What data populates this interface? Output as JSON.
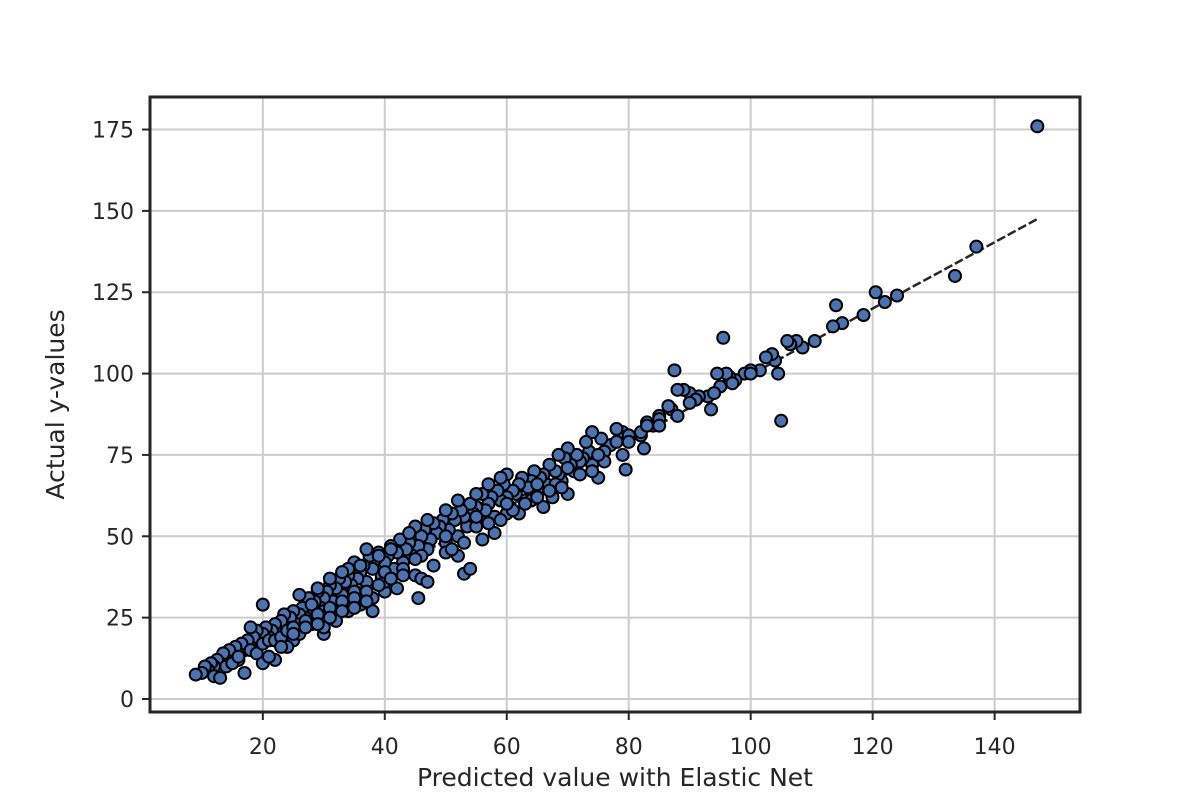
{
  "chart_data": {
    "type": "scatter",
    "title": "",
    "xlabel": "Predicted value with Elastic Net",
    "ylabel": "Actual y-values",
    "xlim": [
      1.5,
      154
    ],
    "ylim": [
      -4,
      185
    ],
    "xticks": [
      20,
      40,
      60,
      80,
      100,
      120,
      140
    ],
    "yticks": [
      0,
      25,
      50,
      75,
      100,
      125,
      150,
      175
    ],
    "grid": true,
    "legend": "none",
    "colors": {
      "point_fill": "#4c72b0",
      "point_edge": "#000000",
      "grid": "#cccccc",
      "axes": "#262626",
      "reference_line": "#262626"
    },
    "reference_line": {
      "style": "dashed",
      "x": [
        9,
        147
      ],
      "y": [
        7,
        147.5
      ]
    },
    "points": [
      [
        147,
        176
      ],
      [
        137,
        139
      ],
      [
        133.5,
        130
      ],
      [
        124,
        124
      ],
      [
        122,
        122
      ],
      [
        120.5,
        125
      ],
      [
        118.5,
        118
      ],
      [
        115,
        115.5
      ],
      [
        114,
        121
      ],
      [
        113.5,
        114.5
      ],
      [
        110.5,
        110
      ],
      [
        108.5,
        108
      ],
      [
        107.5,
        110
      ],
      [
        106.5,
        109
      ],
      [
        106,
        110
      ],
      [
        105,
        85.5
      ],
      [
        104.5,
        100
      ],
      [
        104,
        104
      ],
      [
        103.5,
        106
      ],
      [
        102.5,
        105
      ],
      [
        101.5,
        101
      ],
      [
        100,
        101
      ],
      [
        99,
        100
      ],
      [
        97.5,
        98
      ],
      [
        96.5,
        99
      ],
      [
        96,
        100
      ],
      [
        95.5,
        111
      ],
      [
        95,
        96
      ],
      [
        94.5,
        100
      ],
      [
        93.5,
        89
      ],
      [
        93,
        93
      ],
      [
        91.5,
        93
      ],
      [
        90,
        94
      ],
      [
        89,
        95
      ],
      [
        88,
        95
      ],
      [
        87.5,
        101
      ],
      [
        87,
        89
      ],
      [
        86.5,
        90
      ],
      [
        85,
        87
      ],
      [
        84,
        84
      ],
      [
        83,
        85
      ],
      [
        82.5,
        77
      ],
      [
        82,
        81
      ],
      [
        80,
        80
      ],
      [
        79,
        82
      ],
      [
        79,
        75
      ],
      [
        79.5,
        70.5
      ],
      [
        78,
        83
      ],
      [
        77,
        78
      ],
      [
        76,
        76
      ],
      [
        75.5,
        80
      ],
      [
        75,
        68
      ],
      [
        74,
        72
      ],
      [
        74,
        82
      ],
      [
        73.5,
        76
      ],
      [
        73,
        79
      ],
      [
        72.5,
        74
      ],
      [
        72,
        73
      ],
      [
        71.5,
        75
      ],
      [
        71,
        70
      ],
      [
        70.5,
        72
      ],
      [
        70,
        77
      ],
      [
        69.5,
        74
      ],
      [
        69,
        67
      ],
      [
        68.5,
        69
      ],
      [
        68.5,
        75
      ],
      [
        68,
        70
      ],
      [
        67.5,
        62
      ],
      [
        67,
        72
      ],
      [
        66.5,
        66
      ],
      [
        66,
        69
      ],
      [
        65.5,
        68
      ],
      [
        65,
        64
      ],
      [
        64.5,
        70
      ],
      [
        64,
        67
      ],
      [
        63.5,
        65
      ],
      [
        63,
        61
      ],
      [
        62.5,
        68
      ],
      [
        62,
        66
      ],
      [
        61.5,
        63
      ],
      [
        61,
        64
      ],
      [
        60.5,
        59
      ],
      [
        60,
        69
      ],
      [
        60,
        62
      ],
      [
        59.5,
        66
      ],
      [
        59,
        61
      ],
      [
        58.5,
        64
      ],
      [
        58,
        56
      ],
      [
        57.5,
        62
      ],
      [
        57,
        60
      ],
      [
        56.5,
        58
      ],
      [
        56,
        63
      ],
      [
        55.5,
        55
      ],
      [
        55,
        59
      ],
      [
        54.5,
        57
      ],
      [
        54,
        60
      ],
      [
        53.5,
        53
      ],
      [
        53,
        56
      ],
      [
        52.5,
        58
      ],
      [
        52,
        50
      ],
      [
        51.5,
        55
      ],
      [
        51,
        57
      ],
      [
        50.5,
        52
      ],
      [
        50,
        48
      ],
      [
        49.5,
        55
      ],
      [
        49,
        53
      ],
      [
        48.5,
        51
      ],
      [
        48,
        54
      ],
      [
        47.5,
        49
      ],
      [
        47,
        46
      ],
      [
        46.5,
        52
      ],
      [
        46,
        50
      ],
      [
        45.5,
        47
      ],
      [
        45,
        53
      ],
      [
        44.5,
        44
      ],
      [
        44,
        48
      ],
      [
        43.5,
        46
      ],
      [
        43,
        42
      ],
      [
        42.5,
        49
      ],
      [
        42,
        45
      ],
      [
        41.5,
        40
      ],
      [
        41,
        47
      ],
      [
        40.5,
        44
      ],
      [
        40,
        42
      ],
      [
        39.5,
        38
      ],
      [
        39,
        45
      ],
      [
        38.5,
        43
      ],
      [
        38,
        40
      ],
      [
        37.5,
        44
      ],
      [
        37,
        36
      ],
      [
        36.5,
        41
      ],
      [
        36,
        39
      ],
      [
        35.5,
        37
      ],
      [
        35,
        42
      ],
      [
        34.5,
        35
      ],
      [
        34,
        38
      ],
      [
        33.5,
        36
      ],
      [
        33,
        32
      ],
      [
        32.5,
        37
      ],
      [
        32,
        34
      ],
      [
        31.5,
        30
      ],
      [
        31,
        35
      ],
      [
        30.5,
        33
      ],
      [
        30,
        31
      ],
      [
        29.5,
        28
      ],
      [
        29,
        33
      ],
      [
        28.5,
        30
      ],
      [
        28,
        27
      ],
      [
        27.5,
        31
      ],
      [
        27,
        25
      ],
      [
        26.5,
        28
      ],
      [
        26,
        26
      ],
      [
        25.5,
        23
      ],
      [
        25,
        27
      ],
      [
        24.5,
        25
      ],
      [
        24,
        22
      ],
      [
        23.5,
        26
      ],
      [
        23,
        24
      ],
      [
        22.5,
        20
      ],
      [
        22,
        23
      ],
      [
        21.5,
        21
      ],
      [
        21,
        19
      ],
      [
        20.5,
        22
      ],
      [
        20,
        20
      ],
      [
        19.5,
        17
      ],
      [
        19,
        21
      ],
      [
        18.5,
        19
      ],
      [
        18,
        16
      ],
      [
        17.5,
        18
      ],
      [
        17,
        15
      ],
      [
        16.5,
        17
      ],
      [
        16,
        14
      ],
      [
        15.5,
        16
      ],
      [
        15,
        13
      ],
      [
        14.5,
        15
      ],
      [
        14,
        12
      ],
      [
        13.5,
        14
      ],
      [
        13,
        11
      ],
      [
        12.5,
        12
      ],
      [
        12,
        10
      ],
      [
        11.5,
        11
      ],
      [
        11,
        9
      ],
      [
        10.5,
        10
      ],
      [
        10,
        8
      ],
      [
        9,
        7.5
      ],
      [
        12,
        7
      ],
      [
        13,
        6.5
      ],
      [
        16,
        12
      ],
      [
        18,
        22
      ],
      [
        17,
        8
      ],
      [
        20,
        29
      ],
      [
        22,
        12
      ],
      [
        25,
        18
      ],
      [
        28,
        29
      ],
      [
        30,
        20
      ],
      [
        32,
        26
      ],
      [
        34,
        40
      ],
      [
        35,
        30
      ],
      [
        38,
        27
      ],
      [
        40,
        33
      ],
      [
        42,
        34
      ],
      [
        45,
        38
      ],
      [
        45.5,
        31
      ],
      [
        46,
        37
      ],
      [
        47,
        36
      ],
      [
        50,
        45
      ],
      [
        52,
        44
      ],
      [
        53,
        38.5
      ],
      [
        54,
        40
      ],
      [
        56,
        49
      ],
      [
        58,
        51
      ],
      [
        60,
        57
      ],
      [
        62,
        57
      ],
      [
        64,
        61
      ],
      [
        66,
        59
      ],
      [
        68,
        66
      ],
      [
        70,
        63
      ],
      [
        72,
        69
      ],
      [
        74,
        70
      ],
      [
        76,
        73
      ],
      [
        78,
        79
      ],
      [
        80,
        81
      ],
      [
        82,
        82
      ],
      [
        83,
        84
      ],
      [
        85,
        86
      ],
      [
        88,
        87
      ],
      [
        91,
        92
      ],
      [
        94,
        94
      ],
      [
        97,
        97
      ],
      [
        100,
        100
      ],
      [
        24,
        16
      ],
      [
        26,
        20
      ],
      [
        28,
        23
      ],
      [
        30,
        22
      ],
      [
        32,
        24
      ],
      [
        34,
        27
      ],
      [
        36,
        29
      ],
      [
        38,
        31
      ],
      [
        40,
        36
      ],
      [
        43,
        40
      ],
      [
        46,
        44
      ],
      [
        48,
        41
      ],
      [
        51,
        46
      ],
      [
        53,
        48
      ],
      [
        55,
        53
      ],
      [
        57,
        54
      ],
      [
        59,
        55
      ],
      [
        61,
        58
      ],
      [
        63,
        60
      ],
      [
        65,
        62
      ],
      [
        67,
        64
      ],
      [
        69,
        65
      ],
      [
        36,
        41
      ],
      [
        39,
        44
      ],
      [
        41,
        46
      ],
      [
        44,
        51
      ],
      [
        47,
        55
      ],
      [
        50,
        58
      ],
      [
        37,
        46
      ],
      [
        52,
        61
      ],
      [
        55,
        63
      ],
      [
        57,
        66
      ],
      [
        59,
        68
      ],
      [
        26,
        32
      ],
      [
        29,
        34
      ],
      [
        31,
        37
      ],
      [
        33,
        39
      ],
      [
        30,
        27
      ],
      [
        35,
        33
      ],
      [
        40,
        39
      ],
      [
        45,
        43
      ],
      [
        50,
        50
      ],
      [
        55,
        56
      ],
      [
        60,
        60
      ],
      [
        65,
        66
      ],
      [
        70,
        71
      ],
      [
        75,
        75
      ],
      [
        80,
        79
      ],
      [
        85,
        84
      ],
      [
        90,
        91
      ],
      [
        14,
        10
      ],
      [
        15,
        11
      ],
      [
        16,
        13
      ],
      [
        18,
        15
      ],
      [
        19,
        14
      ],
      [
        20,
        17
      ],
      [
        21,
        18
      ],
      [
        22,
        18
      ],
      [
        23,
        19
      ],
      [
        24,
        21
      ],
      [
        25,
        22
      ],
      [
        27,
        24
      ],
      [
        29,
        26
      ],
      [
        31,
        28
      ],
      [
        33,
        30
      ],
      [
        35,
        31
      ],
      [
        37,
        33
      ],
      [
        39,
        35
      ],
      [
        41,
        37
      ],
      [
        43,
        38
      ],
      [
        20,
        11
      ],
      [
        21,
        13
      ],
      [
        23,
        16
      ],
      [
        25,
        20
      ],
      [
        27,
        22
      ],
      [
        29,
        23
      ],
      [
        31,
        25
      ],
      [
        33,
        27
      ],
      [
        35,
        28
      ],
      [
        37,
        30
      ]
    ]
  }
}
